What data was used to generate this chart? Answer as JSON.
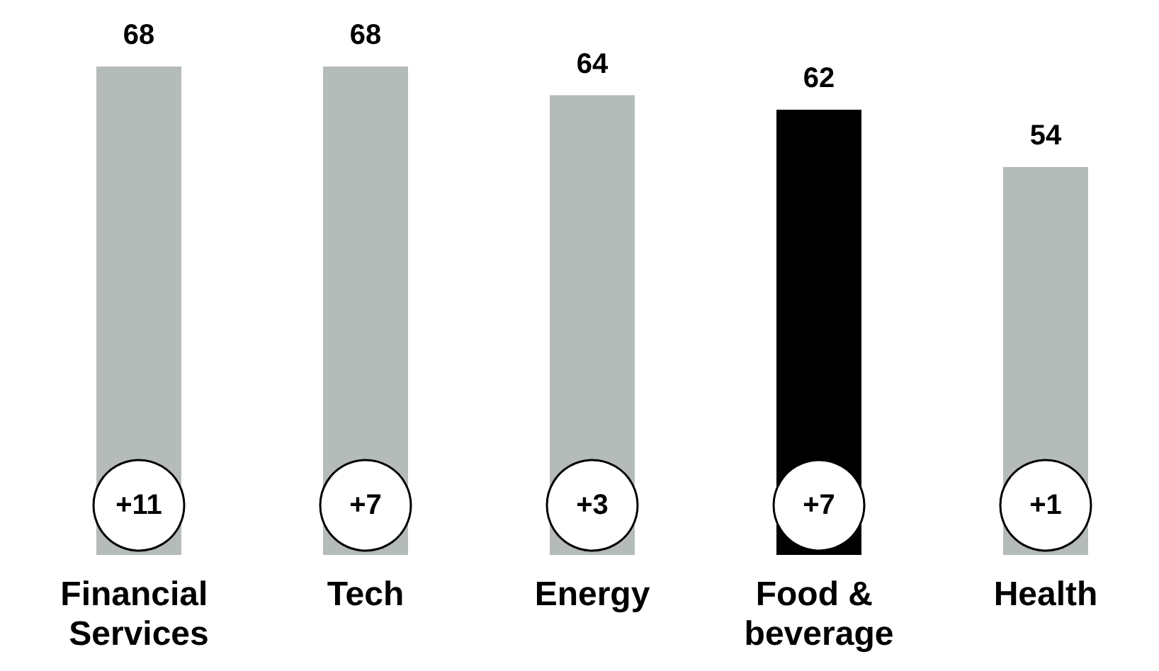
{
  "chart_data": {
    "type": "bar",
    "categories": [
      "Financial Services",
      "Tech",
      "Energy",
      "Food & beverage",
      "Health"
    ],
    "values": [
      68,
      68,
      64,
      62,
      54
    ],
    "colors": [
      "#b5bbb8",
      "#b5bbb8",
      "#b5bbb8",
      "#000000",
      "#b5bbb8"
    ],
    "data_labels": true,
    "annotations": [
      "+11",
      "+7",
      "+3",
      "+7",
      "+1"
    ]
  }
}
